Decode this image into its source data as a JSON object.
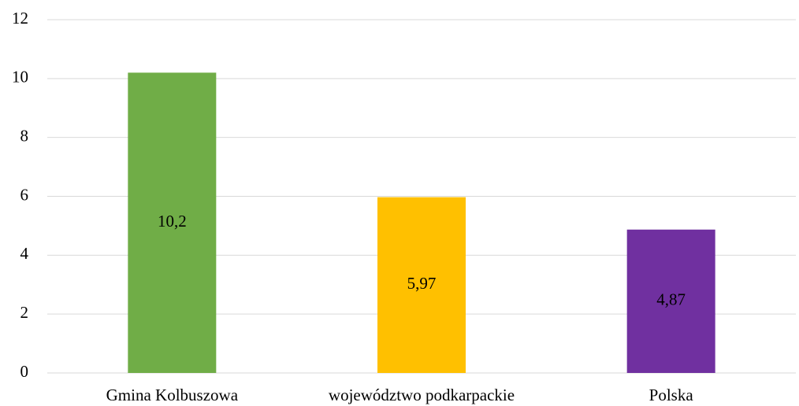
{
  "chart_data": {
    "type": "bar",
    "categories": [
      "Gmina Kolbuszowa",
      "województwo podkarpackie",
      "Polska"
    ],
    "values": [
      10.2,
      5.97,
      4.87
    ],
    "value_labels": [
      "10,2",
      "5,97",
      "4,87"
    ],
    "colors": [
      "#70ad47",
      "#ffc000",
      "#7030a0"
    ],
    "ylim": [
      0,
      12
    ],
    "yticks": [
      0,
      2,
      4,
      6,
      8,
      10,
      12
    ],
    "grid": true
  }
}
